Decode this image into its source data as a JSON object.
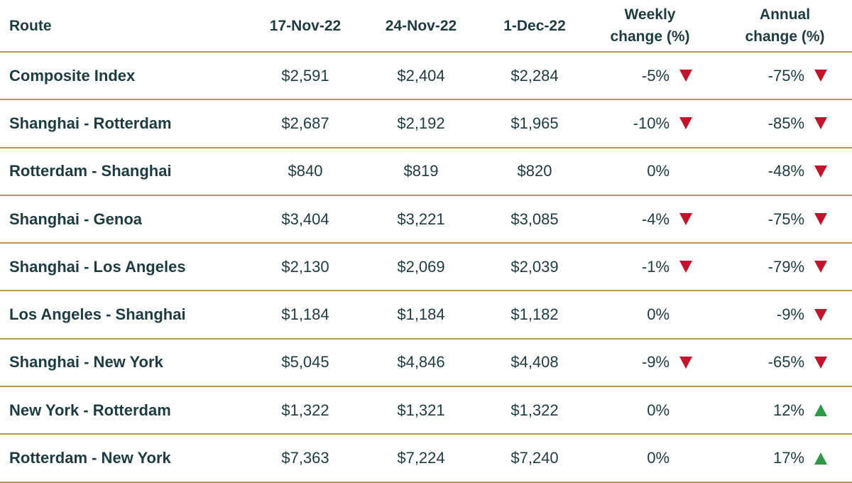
{
  "colors": {
    "text": "#1d3b40",
    "rule": "#b99a52",
    "down": "#c0152a",
    "up": "#2e9a48"
  },
  "chart_data": {
    "type": "table",
    "headers": {
      "route": "Route",
      "d1": "17-Nov-22",
      "d2": "24-Nov-22",
      "d3": "1-Dec-22",
      "weekly_line1": "Weekly",
      "weekly_line2": "change (%)",
      "annual_line1": "Annual",
      "annual_line2": "change (%)"
    },
    "rows": [
      {
        "route": "Composite Index",
        "d1": "$2,591",
        "d2": "$2,404",
        "d3": "$2,284",
        "weekly": "-5%",
        "weekly_dir": "down",
        "annual": "-75%",
        "annual_dir": "down"
      },
      {
        "route": "Shanghai - Rotterdam",
        "d1": "$2,687",
        "d2": "$2,192",
        "d3": "$1,965",
        "weekly": "-10%",
        "weekly_dir": "down",
        "annual": "-85%",
        "annual_dir": "down"
      },
      {
        "route": "Rotterdam - Shanghai",
        "d1": "$840",
        "d2": "$819",
        "d3": "$820",
        "weekly": "0%",
        "weekly_dir": "none",
        "annual": "-48%",
        "annual_dir": "down"
      },
      {
        "route": "Shanghai - Genoa",
        "d1": "$3,404",
        "d2": "$3,221",
        "d3": "$3,085",
        "weekly": "-4%",
        "weekly_dir": "down",
        "annual": "-75%",
        "annual_dir": "down"
      },
      {
        "route": "Shanghai - Los Angeles",
        "d1": "$2,130",
        "d2": "$2,069",
        "d3": "$2,039",
        "weekly": "-1%",
        "weekly_dir": "down",
        "annual": "-79%",
        "annual_dir": "down"
      },
      {
        "route": "Los Angeles - Shanghai",
        "d1": "$1,184",
        "d2": "$1,184",
        "d3": "$1,182",
        "weekly": "0%",
        "weekly_dir": "none",
        "annual": "-9%",
        "annual_dir": "down"
      },
      {
        "route": "Shanghai - New York",
        "d1": "$5,045",
        "d2": "$4,846",
        "d3": "$4,408",
        "weekly": "-9%",
        "weekly_dir": "down",
        "annual": "-65%",
        "annual_dir": "down"
      },
      {
        "route": "New York - Rotterdam",
        "d1": "$1,322",
        "d2": "$1,321",
        "d3": "$1,322",
        "weekly": "0%",
        "weekly_dir": "none",
        "annual": "12%",
        "annual_dir": "up"
      },
      {
        "route": "Rotterdam - New York",
        "d1": "$7,363",
        "d2": "$7,224",
        "d3": "$7,240",
        "weekly": "0%",
        "weekly_dir": "none",
        "annual": "17%",
        "annual_dir": "up"
      }
    ]
  }
}
